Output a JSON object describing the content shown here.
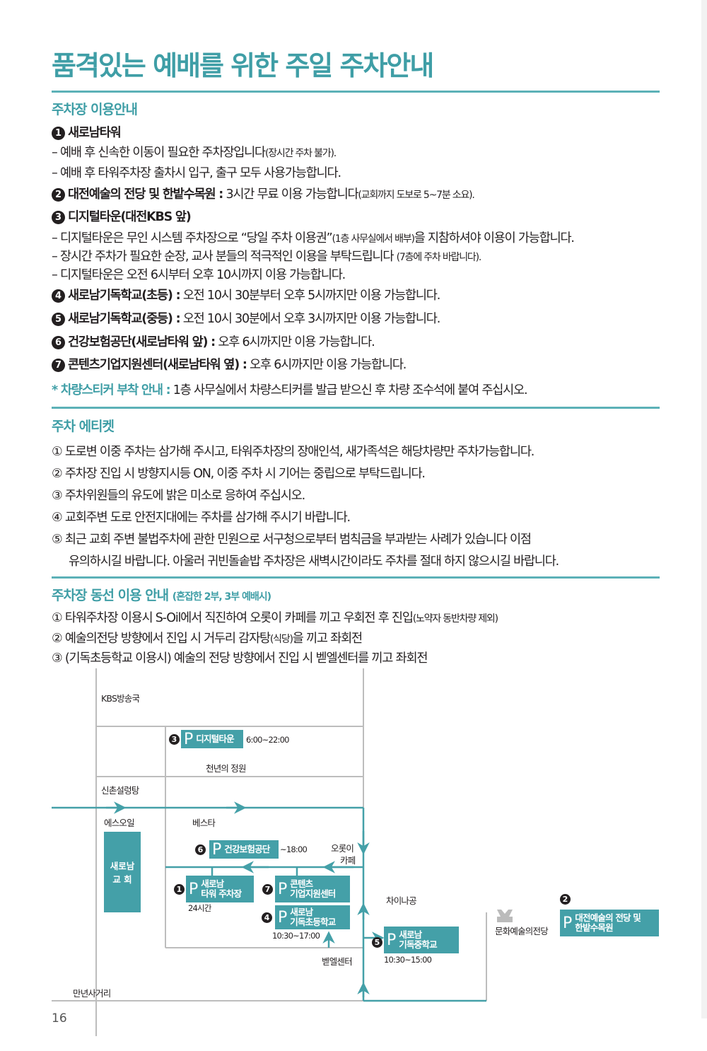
{
  "title": "품격있는 예배를 위한 주일 주차안내",
  "colors": {
    "accent": "#3f9ea6",
    "rule": "#5cb1b7",
    "map_box": "#44a0a8",
    "map_line": "#bdbdbd"
  },
  "section1": {
    "heading": "주차장 이용안내",
    "items": [
      {
        "num": "1",
        "name": "새로남타워",
        "text": ""
      },
      {
        "dash": "–",
        "text": "예배 후 신속한 이동이 필요한 주차장입니다",
        "small": "(장시간 주차 불가)."
      },
      {
        "dash": "–",
        "text": "예배 후 타워주차장 출차시 입구, 출구 모두 사용가능합니다.",
        "small": ""
      },
      {
        "num": "2",
        "name": "대전예술의 전당 및 한밭수목원 :",
        "text": " 3시간 무료 이용 가능합니다",
        "small": "(교회까지 도보로 5~7분 소요)."
      },
      {
        "num": "3",
        "name": "디지털타운(대전KBS 앞)",
        "text": ""
      },
      {
        "dash": "–",
        "text": "디지털타운은 무인 시스템 주차장으로 “당일 주차 이용권”",
        "small": "(1층 사무실에서 배부)",
        "text2": "을 지참하셔야 이용이 가능합니다."
      },
      {
        "dash": "–",
        "text": "장시간 주차가 필요한 순장, 교사 분들의 적극적인 이용을 부탁드립니다 ",
        "small": "(7층에 주차 바랍니다)."
      },
      {
        "dash": "–",
        "text": "디지털타운은 오전 6시부터 오후 10시까지 이용 가능합니다.",
        "small": ""
      },
      {
        "num": "4",
        "name": "새로남기독학교(초등) :",
        "text": " 오전 10시 30분부터 오후 5시까지만 이용 가능합니다."
      },
      {
        "num": "5",
        "name": "새로남기독학교(중등) :",
        "text": " 오전 10시 30분에서 오후 3시까지만 이용 가능합니다."
      },
      {
        "num": "6",
        "name": "건강보험공단(새로남타워 앞) :",
        "text": " 오후 6시까지만 이용 가능합니다."
      },
      {
        "num": "7",
        "name": "콘텐츠기업지원센터(새로남타워 옆) :",
        "text": " 오후 6시까지만 이용 가능합니다."
      }
    ],
    "note_label": "* 차량스티커 부착 안내 :",
    "note_text": " 1층 사무실에서 차량스티커를 발급 받으신 후 차량 조수석에 붙여 주십시오."
  },
  "section2": {
    "heading": "주차 에티켓",
    "items": [
      "① 도로변 이중 주차는 삼가해 주시고, 타워주차장의 장애인석, 새가족석은 해당차량만 주차가능합니다.",
      "② 주차장 진입 시 방향지시등 ON, 이중 주차 시 기어는 중립으로 부탁드립니다.",
      "③ 주차위원들의 유도에 밝은 미소로 응하여 주십시오.",
      "④ 교회주변 도로 안전지대에는 주차를 삼가해 주시기 바랍니다.",
      "⑤ 최근 교회 주변 불법주차에 관한 민원으로 서구청으로부터 범칙금을 부과받는 사례가 있습니다 이점",
      "유의하시길 바랍니다. 아울러 귀빈돌솥밥 주차장은 새벽시간이라도 주차를 절대 하지 않으시길 바랍니다."
    ]
  },
  "section3": {
    "heading": "주차장 동선 이용 안내",
    "heading_small": "(혼잡한 2부, 3부 예배시)",
    "items": [
      {
        "text": "① 타워주차장 이용시 S-Oil에서 직진하여 오롯이 카페를 끼고 우회전 후 진입",
        "small": "(노약자 동반차량 제외)"
      },
      {
        "text": "② 예술의전당 방향에서 진입 시 거두리 감자탕",
        "small": "(식당)",
        "text2": "을 끼고 좌회전"
      },
      {
        "text": "③ (기독초등학교 이용시) 예술의 전당 방향에서 진입 시 벧엘센터를 끼고 좌회전",
        "small": ""
      }
    ]
  },
  "map": {
    "landmarks": {
      "kbs": "KBS방송국",
      "garden": "천년의 정원",
      "sinchon": "신촌설렁탕",
      "soil": "에스오일",
      "vesta": "베스타",
      "orot": "오롯이",
      "cafe": "카페",
      "china": "차이나공",
      "bethel": "벧엘센터",
      "arts": "문화예술의전당",
      "crossroad": "만년사거리"
    },
    "church": {
      "line1": "새로남",
      "line2": "교  회"
    },
    "lots": [
      {
        "num": "1",
        "p": "P",
        "name1": "새로남",
        "name2": "타워 주차장",
        "hours": "24시간"
      },
      {
        "num": "2",
        "p": "P",
        "name1": "대전예술의 전당 및",
        "name2": "한밭수목원",
        "hours": ""
      },
      {
        "num": "3",
        "p": "P",
        "name1": "디지털타운",
        "name2": "",
        "hours": "6:00~22:00"
      },
      {
        "num": "4",
        "p": "P",
        "name1": "새로남",
        "name2": "기독초등학교",
        "hours": "10:30~17:00"
      },
      {
        "num": "5",
        "p": "P",
        "name1": "새로남",
        "name2": "기독중학교",
        "hours": "10:30~15:00"
      },
      {
        "num": "6",
        "p": "P",
        "name1": "건강보험공단",
        "name2": "",
        "hours": "~18:00"
      },
      {
        "num": "7",
        "p": "P",
        "name1": "콘텐츠",
        "name2": "기업지원센터",
        "hours": ""
      }
    ]
  },
  "page_number": "16"
}
